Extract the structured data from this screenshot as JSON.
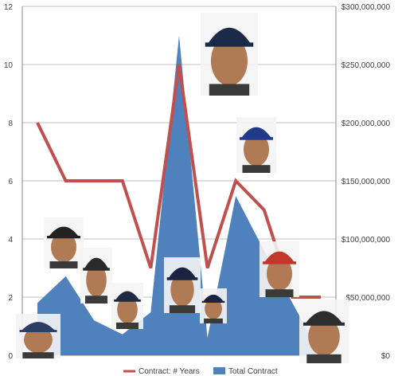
{
  "chart_data": {
    "type": "line",
    "x": [
      "1",
      "2",
      "3",
      "4",
      "5",
      "6",
      "7",
      "8",
      "9",
      "10",
      "11"
    ],
    "series": [
      {
        "name": "Total Contract",
        "kind": "area",
        "axis": "right",
        "color": "#4f81bd",
        "values": [
          45000000,
          68000000,
          30000000,
          18000000,
          37000000,
          275000000,
          15000000,
          137000000,
          90000000,
          45000000,
          0
        ]
      },
      {
        "name": "Contract: # Years",
        "kind": "line",
        "axis": "left",
        "color": "#c0504d",
        "values": [
          8,
          6,
          6,
          6,
          3,
          10,
          3,
          6,
          5,
          2,
          2
        ]
      }
    ],
    "ylim": [
      0,
      12
    ],
    "y2lim": [
      0,
      300000000
    ],
    "yticks": [
      "0",
      "2",
      "4",
      "6",
      "8",
      "10",
      "12"
    ],
    "y2ticks": [
      "$0",
      "$50,000,000",
      "$100,000,000",
      "$150,000,000",
      "$200,000,000",
      "$250,000,000",
      "$300,000,000"
    ],
    "grid": true,
    "legend": "bottom",
    "player_photos": [
      {
        "name": "player-photo-1-icon",
        "x": 1,
        "y": 0
      },
      {
        "name": "player-photo-2-icon",
        "x": 2,
        "y": 0
      },
      {
        "name": "player-photo-3-icon",
        "x": 3,
        "y": 0
      },
      {
        "name": "player-photo-4-icon",
        "x": 4,
        "y": 0
      },
      {
        "name": "player-photo-5-icon",
        "x": 5,
        "y": 0
      },
      {
        "name": "player-photo-6-icon",
        "x": 6,
        "y": 0
      },
      {
        "name": "player-photo-7-icon",
        "x": 7,
        "y": 0
      },
      {
        "name": "player-photo-8-icon",
        "x": 8,
        "y": 0
      },
      {
        "name": "player-photo-9-icon",
        "x": 9,
        "y": 0
      },
      {
        "name": "player-photo-10-icon",
        "x": 10,
        "y": 0
      },
      {
        "name": "player-photo-11-icon",
        "x": 11,
        "y": 0
      }
    ]
  }
}
